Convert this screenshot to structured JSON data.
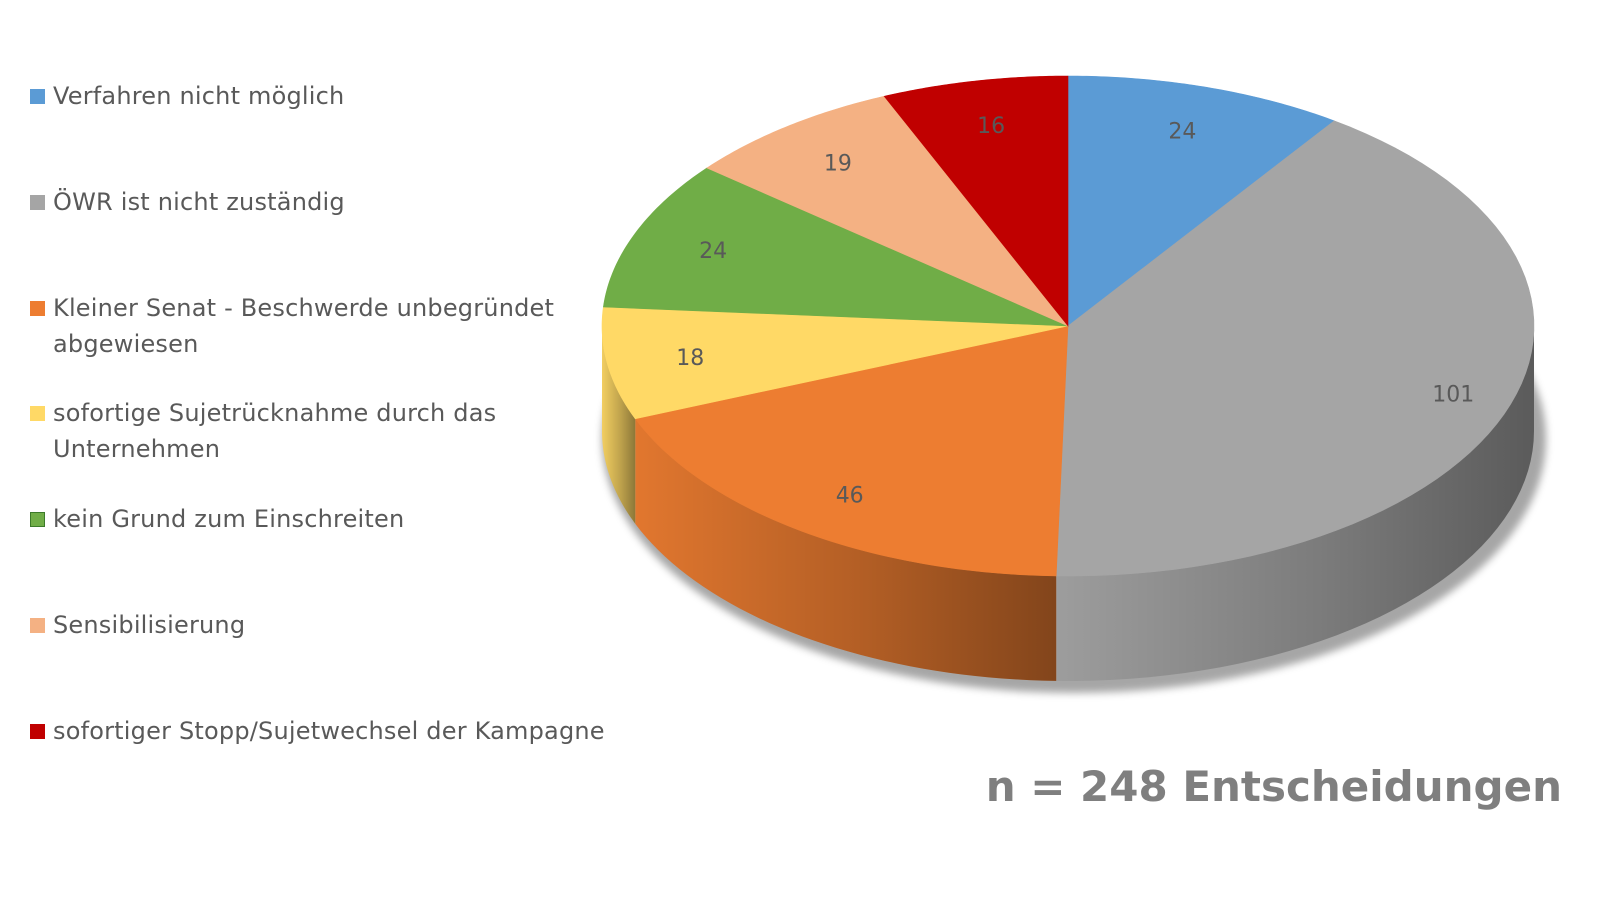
{
  "chart_data": {
    "type": "pie",
    "style": "3d",
    "categories": [
      "Verfahren nicht möglich",
      "ÖWR ist nicht zuständig",
      "Kleiner Senat - Beschwerde unbegründet abgewiesen",
      "sofortige Sujetrücknahme durch das Unternehmen",
      "kein Grund zum Einschreiten",
      "Sensibilisierung",
      "sofortiger Stopp/Sujetwechsel der Kampagne"
    ],
    "values": [
      24,
      101,
      46,
      18,
      24,
      19,
      16
    ],
    "value_labels": [
      "24",
      "101",
      "46",
      "18",
      "24",
      "19",
      "16"
    ],
    "colors": [
      "#5b9bd5",
      "#a5a5a5",
      "#ed7d31",
      "#ffd966",
      "#70ad47",
      "#f4b183",
      "#c00000"
    ],
    "legend_position": "left",
    "annotation": "n = 248 Entscheidungen"
  }
}
